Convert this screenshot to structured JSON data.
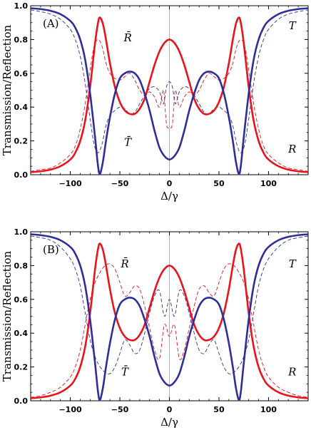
{
  "colors": {
    "red": "#e8141b",
    "blue": "#2e2e9a",
    "axis": "#000000",
    "center": "#9a9a9a"
  },
  "chart_data": [
    {
      "type": "line",
      "panel_label": "(A)",
      "xlabel": "Δ/γ",
      "ylabel": "Transmission/Reflection",
      "xlim": [
        -140,
        140
      ],
      "ylim": [
        0,
        1
      ],
      "xticks": [
        -100,
        -50,
        0,
        50,
        100
      ],
      "xtick_labels": [
        "−100",
        "−50",
        "0",
        "50",
        "100"
      ],
      "yticks": [
        0,
        0.2,
        0.4,
        0.6,
        0.8,
        1.0
      ],
      "ytick_labels": [
        "0.0",
        "0.2",
        "0.4",
        "0.6",
        "0.8",
        "1.0"
      ],
      "annotations": [
        {
          "text": "R̄",
          "x": -42,
          "y": 0.79
        },
        {
          "text": "T̄",
          "x": -42,
          "y": 0.17
        },
        {
          "text": "T",
          "x": 124,
          "y": 0.86
        },
        {
          "text": "R",
          "x": 124,
          "y": 0.13
        }
      ],
      "series": [
        {
          "key": "R",
          "style": "solid",
          "color": "red",
          "x": [
            -140,
            -130,
            -120,
            -110,
            -100,
            -95,
            -90,
            -85,
            -80,
            -75,
            -72,
            -70,
            -67,
            -64,
            -60,
            -55,
            -50,
            -45,
            -40,
            -35,
            -30,
            -25,
            -20,
            -15,
            -10,
            -5,
            0,
            5,
            10,
            15,
            20,
            25,
            30,
            35,
            40,
            45,
            50,
            55,
            60,
            64,
            67,
            70,
            72,
            75,
            80,
            85,
            90,
            95,
            100,
            110,
            120,
            130,
            140
          ],
          "y": [
            0.015,
            0.02,
            0.03,
            0.05,
            0.09,
            0.13,
            0.2,
            0.32,
            0.52,
            0.78,
            0.9,
            0.93,
            0.89,
            0.8,
            0.66,
            0.52,
            0.43,
            0.38,
            0.36,
            0.36,
            0.39,
            0.45,
            0.55,
            0.65,
            0.73,
            0.78,
            0.8,
            0.78,
            0.73,
            0.65,
            0.55,
            0.45,
            0.39,
            0.36,
            0.36,
            0.38,
            0.43,
            0.52,
            0.66,
            0.8,
            0.89,
            0.93,
            0.9,
            0.78,
            0.52,
            0.32,
            0.2,
            0.13,
            0.09,
            0.05,
            0.03,
            0.02,
            0.015
          ]
        },
        {
          "key": "T",
          "style": "solid",
          "color": "blue",
          "x": [
            -140,
            -130,
            -120,
            -110,
            -100,
            -95,
            -90,
            -85,
            -80,
            -75,
            -72,
            -70,
            -67,
            -64,
            -60,
            -55,
            -50,
            -45,
            -40,
            -35,
            -30,
            -25,
            -20,
            -15,
            -10,
            -5,
            0,
            5,
            10,
            15,
            20,
            25,
            30,
            35,
            40,
            45,
            50,
            55,
            60,
            64,
            67,
            70,
            72,
            75,
            80,
            85,
            90,
            95,
            100,
            110,
            120,
            130,
            140
          ],
          "y": [
            0.985,
            0.98,
            0.97,
            0.95,
            0.91,
            0.87,
            0.8,
            0.68,
            0.48,
            0.22,
            0.05,
            0.005,
            0.08,
            0.2,
            0.34,
            0.48,
            0.57,
            0.6,
            0.61,
            0.6,
            0.56,
            0.48,
            0.38,
            0.26,
            0.16,
            0.11,
            0.09,
            0.11,
            0.16,
            0.26,
            0.38,
            0.48,
            0.56,
            0.6,
            0.61,
            0.6,
            0.57,
            0.48,
            0.34,
            0.2,
            0.08,
            0.005,
            0.05,
            0.22,
            0.48,
            0.68,
            0.8,
            0.87,
            0.91,
            0.95,
            0.97,
            0.98,
            0.985
          ]
        },
        {
          "key": "R_bar",
          "style": "dashed",
          "color": "red",
          "x": [
            -140,
            -130,
            -120,
            -110,
            -100,
            -95,
            -90,
            -85,
            -80,
            -76,
            -72,
            -68,
            -64,
            -60,
            -55,
            -50,
            -45,
            -40,
            -35,
            -30,
            -25,
            -20,
            -15,
            -10,
            -6,
            -3,
            0,
            3,
            6,
            10,
            15,
            20,
            25,
            30,
            35,
            40,
            45,
            50,
            55,
            60,
            64,
            68,
            72,
            76,
            80,
            85,
            90,
            95,
            100,
            110,
            120,
            130,
            140
          ],
          "y": [
            0.02,
            0.03,
            0.04,
            0.07,
            0.12,
            0.17,
            0.27,
            0.42,
            0.62,
            0.76,
            0.8,
            0.76,
            0.66,
            0.6,
            0.57,
            0.56,
            0.58,
            0.6,
            0.56,
            0.5,
            0.47,
            0.49,
            0.46,
            0.4,
            0.5,
            0.3,
            0.28,
            0.3,
            0.5,
            0.4,
            0.46,
            0.49,
            0.47,
            0.5,
            0.56,
            0.6,
            0.58,
            0.56,
            0.57,
            0.6,
            0.66,
            0.76,
            0.8,
            0.76,
            0.62,
            0.42,
            0.27,
            0.17,
            0.12,
            0.07,
            0.04,
            0.03,
            0.02
          ]
        },
        {
          "key": "T_bar",
          "style": "dashed",
          "color": "blue",
          "x": [
            -140,
            -130,
            -120,
            -110,
            -100,
            -95,
            -90,
            -85,
            -80,
            -76,
            -72,
            -68,
            -64,
            -60,
            -55,
            -50,
            -45,
            -40,
            -35,
            -30,
            -25,
            -20,
            -15,
            -10,
            -6,
            -3,
            0,
            3,
            6,
            10,
            15,
            20,
            25,
            30,
            35,
            40,
            45,
            50,
            55,
            60,
            64,
            68,
            72,
            76,
            80,
            85,
            90,
            95,
            100,
            110,
            120,
            130,
            140
          ],
          "y": [
            0.975,
            0.965,
            0.95,
            0.92,
            0.86,
            0.8,
            0.7,
            0.54,
            0.33,
            0.18,
            0.13,
            0.18,
            0.29,
            0.35,
            0.38,
            0.4,
            0.39,
            0.36,
            0.37,
            0.42,
            0.47,
            0.51,
            0.52,
            0.49,
            0.42,
            0.52,
            0.55,
            0.52,
            0.42,
            0.49,
            0.52,
            0.51,
            0.47,
            0.42,
            0.37,
            0.36,
            0.39,
            0.4,
            0.38,
            0.35,
            0.29,
            0.18,
            0.13,
            0.18,
            0.33,
            0.54,
            0.7,
            0.8,
            0.86,
            0.92,
            0.95,
            0.965,
            0.975
          ]
        }
      ]
    },
    {
      "type": "line",
      "panel_label": "(B)",
      "xlabel": "Δ/γ",
      "ylabel": "Transmission/Reflection",
      "xlim": [
        -140,
        140
      ],
      "ylim": [
        0,
        1
      ],
      "xticks": [
        -100,
        -50,
        0,
        50,
        100
      ],
      "xtick_labels": [
        "−100",
        "−50",
        "0",
        "50",
        "100"
      ],
      "yticks": [
        0,
        0.2,
        0.4,
        0.6,
        0.8,
        1.0
      ],
      "ytick_labels": [
        "0.0",
        "0.2",
        "0.4",
        "0.6",
        "0.8",
        "1.0"
      ],
      "annotations": [
        {
          "text": "R̄",
          "x": -45,
          "y": 0.79
        },
        {
          "text": "T̄",
          "x": -45,
          "y": 0.15
        },
        {
          "text": "T",
          "x": 124,
          "y": 0.79
        },
        {
          "text": "R",
          "x": 124,
          "y": 0.15
        }
      ],
      "series": [
        {
          "key": "R",
          "style": "solid",
          "color": "red",
          "x": [
            -140,
            -130,
            -120,
            -110,
            -100,
            -95,
            -90,
            -85,
            -80,
            -75,
            -72,
            -70,
            -67,
            -64,
            -60,
            -55,
            -50,
            -45,
            -40,
            -35,
            -30,
            -25,
            -20,
            -15,
            -10,
            -5,
            0,
            5,
            10,
            15,
            20,
            25,
            30,
            35,
            40,
            45,
            50,
            55,
            60,
            64,
            67,
            70,
            72,
            75,
            80,
            85,
            90,
            95,
            100,
            110,
            120,
            130,
            140
          ],
          "y": [
            0.015,
            0.02,
            0.03,
            0.05,
            0.09,
            0.13,
            0.2,
            0.32,
            0.52,
            0.78,
            0.9,
            0.93,
            0.89,
            0.8,
            0.66,
            0.52,
            0.43,
            0.38,
            0.36,
            0.36,
            0.39,
            0.45,
            0.55,
            0.65,
            0.73,
            0.78,
            0.8,
            0.78,
            0.73,
            0.65,
            0.55,
            0.45,
            0.39,
            0.36,
            0.36,
            0.38,
            0.43,
            0.52,
            0.66,
            0.8,
            0.89,
            0.93,
            0.9,
            0.78,
            0.52,
            0.32,
            0.2,
            0.13,
            0.09,
            0.05,
            0.03,
            0.02,
            0.015
          ]
        },
        {
          "key": "T",
          "style": "solid",
          "color": "blue",
          "x": [
            -140,
            -130,
            -120,
            -110,
            -100,
            -95,
            -90,
            -85,
            -80,
            -75,
            -72,
            -70,
            -67,
            -64,
            -60,
            -55,
            -50,
            -45,
            -40,
            -35,
            -30,
            -25,
            -20,
            -15,
            -10,
            -5,
            0,
            5,
            10,
            15,
            20,
            25,
            30,
            35,
            40,
            45,
            50,
            55,
            60,
            64,
            67,
            70,
            72,
            75,
            80,
            85,
            90,
            95,
            100,
            110,
            120,
            130,
            140
          ],
          "y": [
            0.985,
            0.98,
            0.97,
            0.95,
            0.91,
            0.87,
            0.8,
            0.68,
            0.48,
            0.22,
            0.05,
            0.005,
            0.08,
            0.2,
            0.34,
            0.48,
            0.57,
            0.6,
            0.61,
            0.6,
            0.56,
            0.48,
            0.38,
            0.26,
            0.16,
            0.11,
            0.09,
            0.11,
            0.16,
            0.26,
            0.38,
            0.48,
            0.56,
            0.6,
            0.61,
            0.6,
            0.57,
            0.48,
            0.34,
            0.2,
            0.08,
            0.005,
            0.05,
            0.22,
            0.48,
            0.68,
            0.8,
            0.87,
            0.91,
            0.95,
            0.97,
            0.98,
            0.985
          ]
        },
        {
          "key": "R_bar",
          "style": "dashed",
          "color": "red",
          "x": [
            -140,
            -130,
            -120,
            -110,
            -100,
            -95,
            -90,
            -85,
            -80,
            -75,
            -70,
            -65,
            -60,
            -55,
            -50,
            -45,
            -40,
            -35,
            -30,
            -25,
            -20,
            -15,
            -10,
            -5,
            0,
            5,
            10,
            15,
            20,
            25,
            30,
            35,
            40,
            45,
            50,
            55,
            60,
            65,
            70,
            75,
            80,
            85,
            90,
            95,
            100,
            110,
            120,
            130,
            140
          ],
          "y": [
            0.02,
            0.03,
            0.05,
            0.08,
            0.14,
            0.2,
            0.3,
            0.45,
            0.6,
            0.7,
            0.76,
            0.8,
            0.81,
            0.78,
            0.7,
            0.62,
            0.64,
            0.68,
            0.66,
            0.56,
            0.43,
            0.3,
            0.25,
            0.45,
            0.38,
            0.45,
            0.25,
            0.3,
            0.43,
            0.56,
            0.66,
            0.68,
            0.64,
            0.62,
            0.7,
            0.78,
            0.81,
            0.8,
            0.76,
            0.7,
            0.6,
            0.45,
            0.3,
            0.2,
            0.14,
            0.08,
            0.05,
            0.03,
            0.02
          ]
        },
        {
          "key": "T_bar",
          "style": "dashed",
          "color": "blue",
          "x": [
            -140,
            -130,
            -120,
            -110,
            -100,
            -95,
            -90,
            -85,
            -80,
            -75,
            -70,
            -65,
            -60,
            -55,
            -50,
            -45,
            -40,
            -35,
            -30,
            -25,
            -20,
            -15,
            -10,
            -5,
            0,
            5,
            10,
            15,
            20,
            25,
            30,
            35,
            40,
            45,
            50,
            55,
            60,
            65,
            70,
            75,
            80,
            85,
            90,
            95,
            100,
            110,
            120,
            130,
            140
          ],
          "y": [
            0.975,
            0.965,
            0.95,
            0.91,
            0.84,
            0.78,
            0.68,
            0.52,
            0.36,
            0.26,
            0.2,
            0.17,
            0.16,
            0.2,
            0.28,
            0.36,
            0.33,
            0.28,
            0.3,
            0.4,
            0.52,
            0.62,
            0.65,
            0.5,
            0.6,
            0.5,
            0.65,
            0.62,
            0.52,
            0.4,
            0.3,
            0.28,
            0.33,
            0.36,
            0.28,
            0.2,
            0.16,
            0.17,
            0.2,
            0.26,
            0.36,
            0.52,
            0.68,
            0.78,
            0.84,
            0.91,
            0.95,
            0.965,
            0.975
          ]
        }
      ]
    }
  ]
}
